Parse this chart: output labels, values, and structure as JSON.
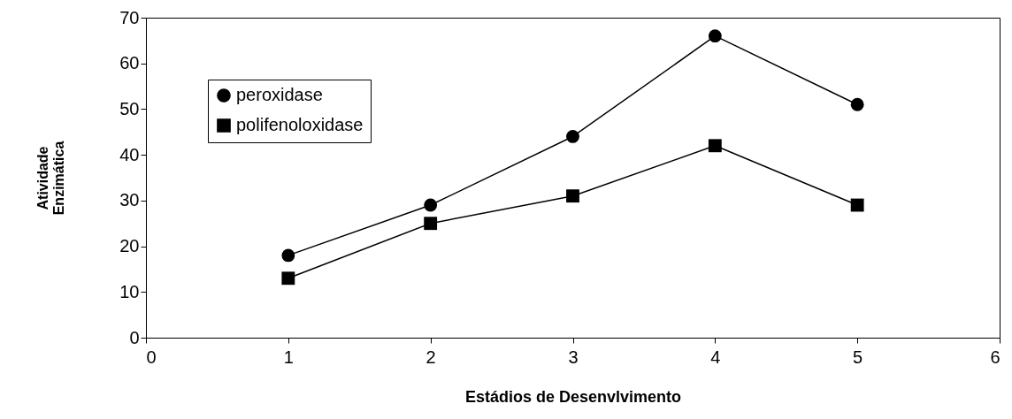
{
  "chart_data": {
    "type": "line",
    "xlabel": "Estádios de Desenvlvimento",
    "ylabel": "Atividade Enzimática",
    "x": [
      1,
      2,
      3,
      4,
      5
    ],
    "series": [
      {
        "name": "peroxidase",
        "color": "#000000",
        "marker": "circle",
        "values": [
          18,
          29,
          44,
          66,
          51
        ]
      },
      {
        "name": "polifenoloxidase",
        "color": "#000000",
        "marker": "square",
        "values": [
          13,
          25,
          31,
          42,
          29
        ]
      }
    ],
    "xlim": [
      0,
      6
    ],
    "xticks": [
      0,
      1,
      2,
      3,
      4,
      5,
      6
    ],
    "ylim": [
      0,
      70
    ],
    "yticks": [
      0,
      10,
      20,
      30,
      40,
      50,
      60,
      70
    ],
    "grid": false,
    "legend": "top left",
    "line_style": "solid"
  }
}
